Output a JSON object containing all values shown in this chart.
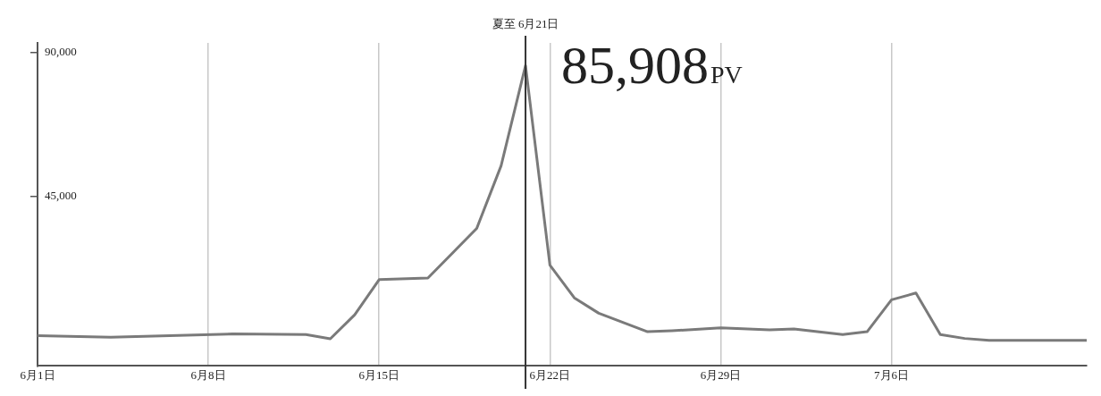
{
  "chart_data": {
    "type": "line",
    "x": [
      "--06-01",
      "--06-04",
      "--06-09",
      "--06-12",
      "--06-13",
      "--06-14",
      "--06-15",
      "--06-17",
      "--06-19",
      "--06-20",
      "--06-21",
      "--06-22",
      "--06-23",
      "--06-24",
      "--06-26",
      "--06-27",
      "--06-29",
      "--07-01",
      "--07-02",
      "--07-04",
      "--07-05",
      "--07-06",
      "--07-07",
      "--07-08",
      "--07-09",
      "--07-10",
      "--07-14"
    ],
    "series": [
      {
        "color": "#7a7a7a",
        "values": [
          1500,
          1000,
          2000,
          1800,
          500,
          8000,
          19000,
          19500,
          35000,
          54600,
          85908,
          23500,
          13300,
          8500,
          2700,
          3000,
          3900,
          3300,
          3600,
          1800,
          2700,
          12700,
          14800,
          1800,
          600,
          0,
          0
        ]
      }
    ],
    "xlim": [
      "--06-01",
      "--07-14"
    ],
    "xticks": [
      {
        "value": "--06-01",
        "label": "6月1日"
      },
      {
        "value": "--06-08",
        "label": "6月8日"
      },
      {
        "value": "--06-15",
        "label": "6月15日"
      },
      {
        "value": "--06-22",
        "label": "6月22日"
      },
      {
        "value": "--06-29",
        "label": "6月29日"
      },
      {
        "value": "--07-06",
        "label": "7月6日"
      }
    ],
    "ylim": [
      -8000,
      93000
    ],
    "yticks": [
      {
        "value": 45000,
        "label": "45,000"
      },
      {
        "value": 90000,
        "label": "90,000"
      }
    ],
    "grid": "x",
    "ref_lines": [
      {
        "axis": "x",
        "value": "--06-21",
        "label": "夏至 6月21日",
        "color": "#333333"
      }
    ],
    "annotations": [
      {
        "text": "85,908PV",
        "x": "--06-21",
        "y": 85908
      }
    ]
  }
}
